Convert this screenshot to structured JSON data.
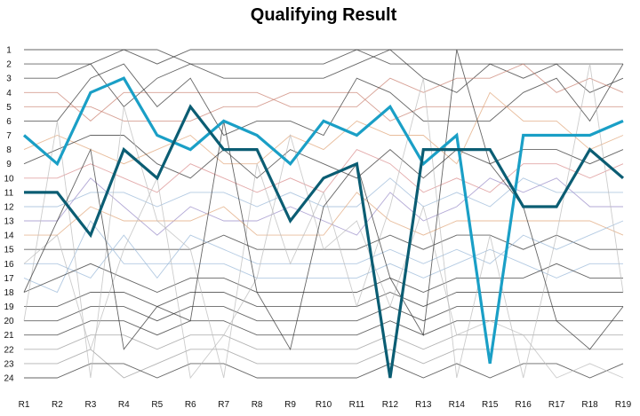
{
  "chart_data": {
    "type": "line",
    "title": "Qualifying Result",
    "xlabel": "",
    "ylabel": "",
    "categories": [
      "R1",
      "R2",
      "R3",
      "R4",
      "R5",
      "R6",
      "R7",
      "R8",
      "R9",
      "R10",
      "R11",
      "R12",
      "R13",
      "R14",
      "R15",
      "R16",
      "R17",
      "R18",
      "R19"
    ],
    "y_ticks": [
      "1",
      "2",
      "3",
      "4",
      "5",
      "6",
      "7",
      "8",
      "9",
      "10",
      "11",
      "12",
      "13",
      "14",
      "15",
      "16",
      "17",
      "18",
      "19",
      "20",
      "21",
      "22",
      "23",
      "24"
    ],
    "ylim": [
      1,
      24
    ],
    "y_inverted": true,
    "grid": false,
    "highlighted_series": [
      {
        "values": [
          7,
          9,
          4,
          3,
          7,
          8,
          6,
          7,
          9,
          6,
          7,
          5,
          9,
          7,
          23,
          7,
          7,
          7,
          6
        ],
        "color": "#1a9fc6"
      },
      {
        "values": [
          11,
          11,
          14,
          8,
          10,
          5,
          8,
          8,
          13,
          10,
          9,
          24,
          8,
          8,
          8,
          12,
          12,
          8,
          10
        ],
        "color": "#0b5d73"
      }
    ],
    "background_series": [
      {
        "values": [
          1,
          1,
          1,
          1,
          2,
          1,
          1,
          1,
          1,
          1,
          1,
          1,
          1,
          1,
          1,
          1,
          1,
          1,
          1
        ],
        "color": "#333333"
      },
      {
        "values": [
          2,
          2,
          2,
          1,
          1,
          2,
          2,
          2,
          2,
          2,
          1,
          2,
          2,
          2,
          2,
          2,
          2,
          2,
          2
        ],
        "color": "#333333"
      },
      {
        "values": [
          3,
          3,
          2,
          5,
          3,
          2,
          3,
          3,
          3,
          3,
          2,
          1,
          3,
          4,
          2,
          3,
          2,
          4,
          3
        ],
        "color": "#333333"
      },
      {
        "values": [
          4,
          4,
          6,
          4,
          4,
          4,
          4,
          4,
          5,
          5,
          5,
          3,
          4,
          3,
          3,
          2,
          4,
          3,
          4
        ],
        "color": "#c98070"
      },
      {
        "values": [
          5,
          5,
          5,
          6,
          6,
          6,
          5,
          5,
          4,
          4,
          4,
          6,
          5,
          5,
          5,
          5,
          5,
          5,
          5
        ],
        "color": "#c98070"
      },
      {
        "values": [
          6,
          6,
          3,
          2,
          5,
          3,
          7,
          6,
          6,
          7,
          3,
          4,
          6,
          6,
          6,
          4,
          3,
          6,
          2
        ],
        "color": "#333333"
      },
      {
        "values": [
          8,
          7,
          8,
          9,
          8,
          7,
          9,
          9,
          7,
          8,
          6,
          7,
          7,
          9,
          4,
          6,
          6,
          8,
          7
        ],
        "color": "#e0a57a"
      },
      {
        "values": [
          9,
          8,
          7,
          7,
          9,
          10,
          8,
          10,
          8,
          9,
          10,
          8,
          10,
          8,
          9,
          8,
          8,
          9,
          8
        ],
        "color": "#333333"
      },
      {
        "values": [
          10,
          10,
          9,
          10,
          11,
          9,
          10,
          11,
          10,
          11,
          8,
          9,
          11,
          10,
          11,
          9,
          9,
          10,
          9
        ],
        "color": "#d98c8c"
      },
      {
        "values": [
          12,
          12,
          11,
          11,
          12,
          11,
          11,
          12,
          11,
          12,
          12,
          10,
          12,
          11,
          12,
          10,
          11,
          11,
          11
        ],
        "color": "#9ab8d8"
      },
      {
        "values": [
          13,
          13,
          10,
          12,
          14,
          12,
          13,
          13,
          12,
          13,
          14,
          11,
          13,
          12,
          10,
          11,
          10,
          12,
          12
        ],
        "color": "#9a8cc8"
      },
      {
        "values": [
          14,
          14,
          12,
          13,
          13,
          13,
          12,
          14,
          14,
          14,
          11,
          13,
          14,
          13,
          13,
          13,
          13,
          13,
          14
        ],
        "color": "#e0a57a"
      },
      {
        "values": [
          15,
          15,
          15,
          15,
          15,
          15,
          14,
          15,
          15,
          15,
          15,
          14,
          15,
          14,
          14,
          15,
          14,
          15,
          15
        ],
        "color": "#333333"
      },
      {
        "values": [
          16,
          16,
          17,
          14,
          17,
          14,
          15,
          16,
          16,
          16,
          16,
          15,
          16,
          15,
          16,
          14,
          15,
          14,
          13
        ],
        "color": "#9ab8d8"
      },
      {
        "values": [
          17,
          18,
          13,
          16,
          16,
          16,
          16,
          17,
          17,
          17,
          17,
          16,
          17,
          16,
          15,
          16,
          17,
          16,
          16
        ],
        "color": "#9ab8d8"
      },
      {
        "values": [
          18,
          17,
          16,
          17,
          18,
          17,
          17,
          18,
          18,
          18,
          18,
          17,
          18,
          17,
          17,
          17,
          16,
          17,
          17
        ],
        "color": "#333333"
      },
      {
        "values": [
          19,
          19,
          18,
          18,
          19,
          18,
          18,
          19,
          19,
          19,
          19,
          18,
          19,
          18,
          18,
          18,
          18,
          18,
          18
        ],
        "color": "#333333"
      },
      {
        "values": [
          20,
          20,
          19,
          19,
          20,
          19,
          19,
          20,
          20,
          20,
          20,
          19,
          20,
          19,
          19,
          19,
          19,
          19,
          19
        ],
        "color": "#333333"
      },
      {
        "values": [
          21,
          21,
          20,
          20,
          21,
          20,
          20,
          21,
          21,
          21,
          21,
          20,
          21,
          20,
          20,
          20,
          20,
          20,
          20
        ],
        "color": "#333333"
      },
      {
        "values": [
          22,
          22,
          21,
          21,
          22,
          21,
          21,
          22,
          22,
          22,
          22,
          21,
          22,
          21,
          21,
          21,
          21,
          21,
          21
        ],
        "color": "#999999"
      },
      {
        "values": [
          23,
          23,
          22,
          24,
          23,
          22,
          22,
          23,
          23,
          23,
          23,
          22,
          23,
          22,
          22,
          22,
          22,
          22,
          22
        ],
        "color": "#999999"
      },
      {
        "values": [
          24,
          24,
          23,
          23,
          24,
          23,
          23,
          24,
          24,
          24,
          24,
          23,
          24,
          23,
          24,
          23,
          23,
          24,
          23
        ],
        "color": "#333333"
      },
      {
        "values": [
          16,
          14,
          22,
          15,
          10,
          24,
          21,
          17,
          7,
          15,
          13,
          19,
          12,
          21,
          20,
          21,
          24,
          23,
          24
        ],
        "color": "#bbbbbb"
      },
      {
        "values": [
          20,
          6,
          24,
          5,
          13,
          15,
          24,
          9,
          16,
          11,
          19,
          12,
          3,
          24,
          14,
          24,
          14,
          2,
          18
        ],
        "color": "#bbbbbb"
      },
      {
        "values": [
          18,
          13,
          8,
          22,
          19,
          20,
          6,
          18,
          22,
          12,
          9,
          17,
          21,
          1,
          9,
          12,
          20,
          22,
          19
        ],
        "color": "#333333"
      }
    ]
  }
}
